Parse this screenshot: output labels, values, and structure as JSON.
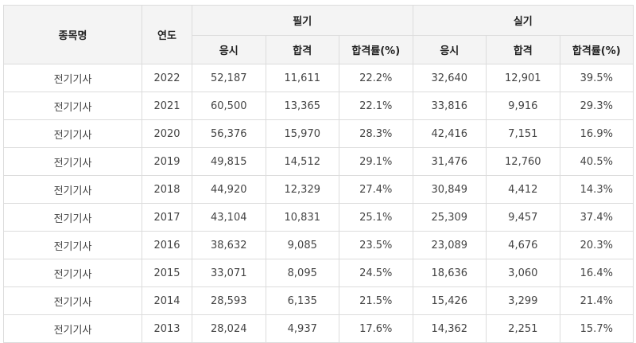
{
  "table": {
    "header": {
      "name": "종목명",
      "year": "연도",
      "written_group": "필기",
      "practical_group": "실기",
      "sub": [
        "응시",
        "합격",
        "합격률(%)",
        "응시",
        "합격",
        "합격률(%)"
      ]
    },
    "rows": [
      [
        "전기기사",
        "2022",
        "52,187",
        "11,611",
        "22.2%",
        "32,640",
        "12,901",
        "39.5%"
      ],
      [
        "전기기사",
        "2021",
        "60,500",
        "13,365",
        "22.1%",
        "33,816",
        "9,916",
        "29.3%"
      ],
      [
        "전기기사",
        "2020",
        "56,376",
        "15,970",
        "28.3%",
        "42,416",
        "7,151",
        "16.9%"
      ],
      [
        "전기기사",
        "2019",
        "49,815",
        "14,512",
        "29.1%",
        "31,476",
        "12,760",
        "40.5%"
      ],
      [
        "전기기사",
        "2018",
        "44,920",
        "12,329",
        "27.4%",
        "30,849",
        "4,412",
        "14.3%"
      ],
      [
        "전기기사",
        "2017",
        "43,104",
        "10,831",
        "25.1%",
        "25,309",
        "9,457",
        "37.4%"
      ],
      [
        "전기기사",
        "2016",
        "38,632",
        "9,085",
        "23.5%",
        "23,089",
        "4,676",
        "20.3%"
      ],
      [
        "전기기사",
        "2015",
        "33,071",
        "8,095",
        "24.5%",
        "18,636",
        "3,060",
        "16.4%"
      ],
      [
        "전기기사",
        "2014",
        "28,593",
        "6,135",
        "21.5%",
        "15,426",
        "3,299",
        "21.4%"
      ],
      [
        "전기기사",
        "2013",
        "28,024",
        "4,937",
        "17.6%",
        "14,362",
        "2,251",
        "15.7%"
      ]
    ]
  }
}
